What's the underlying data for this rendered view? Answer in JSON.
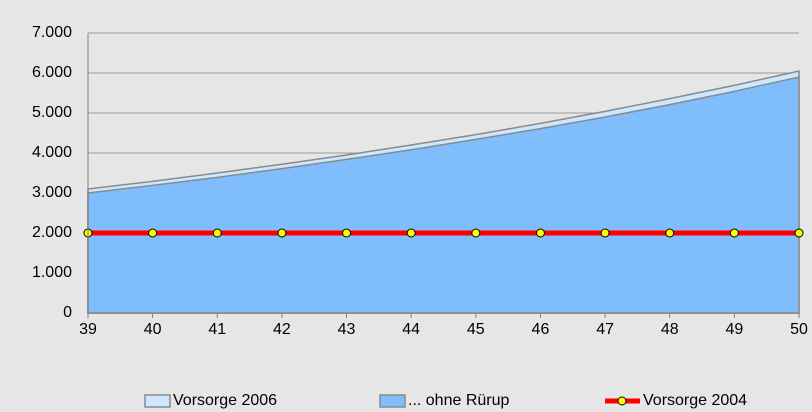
{
  "chart_data": {
    "type": "area",
    "x": [
      39,
      40,
      41,
      42,
      43,
      44,
      45,
      46,
      47,
      48,
      49,
      50
    ],
    "xlim": [
      39,
      50
    ],
    "xticks": [
      39,
      40,
      41,
      42,
      43,
      44,
      45,
      46,
      47,
      48,
      49,
      50
    ],
    "ylim": [
      0,
      7000
    ],
    "yticks": [
      0,
      {
        "value": 1000,
        "label": "1.000"
      },
      {
        "value": 2000,
        "label": "2.000"
      },
      {
        "value": 3000,
        "label": "3.000"
      },
      {
        "value": 4000,
        "label": "4.000"
      },
      {
        "value": 5000,
        "label": "5.000"
      },
      {
        "value": 6000,
        "label": "6.000"
      },
      {
        "value": 7000,
        "label": "7.000"
      }
    ],
    "grid": true,
    "legend": "bottom",
    "series": [
      {
        "name": "Vorsorge 2006",
        "kind": "area",
        "color": "#cfe6ff",
        "values": [
          3100,
          3290,
          3500,
          3720,
          3950,
          4200,
          4460,
          4740,
          5040,
          5360,
          5690,
          6050
        ]
      },
      {
        "name": "... ohne Rürup",
        "kind": "area",
        "color": "#80bdfd",
        "values": [
          3000,
          3190,
          3390,
          3610,
          3840,
          4080,
          4340,
          4610,
          4900,
          5210,
          5540,
          5900
        ]
      },
      {
        "name": "Vorsorge 2004",
        "kind": "line",
        "color": "#ff0000",
        "marker_color": "#ffff00",
        "values": [
          2000,
          2000,
          2000,
          2000,
          2000,
          2000,
          2000,
          2000,
          2000,
          2000,
          2000,
          2000
        ]
      }
    ]
  }
}
